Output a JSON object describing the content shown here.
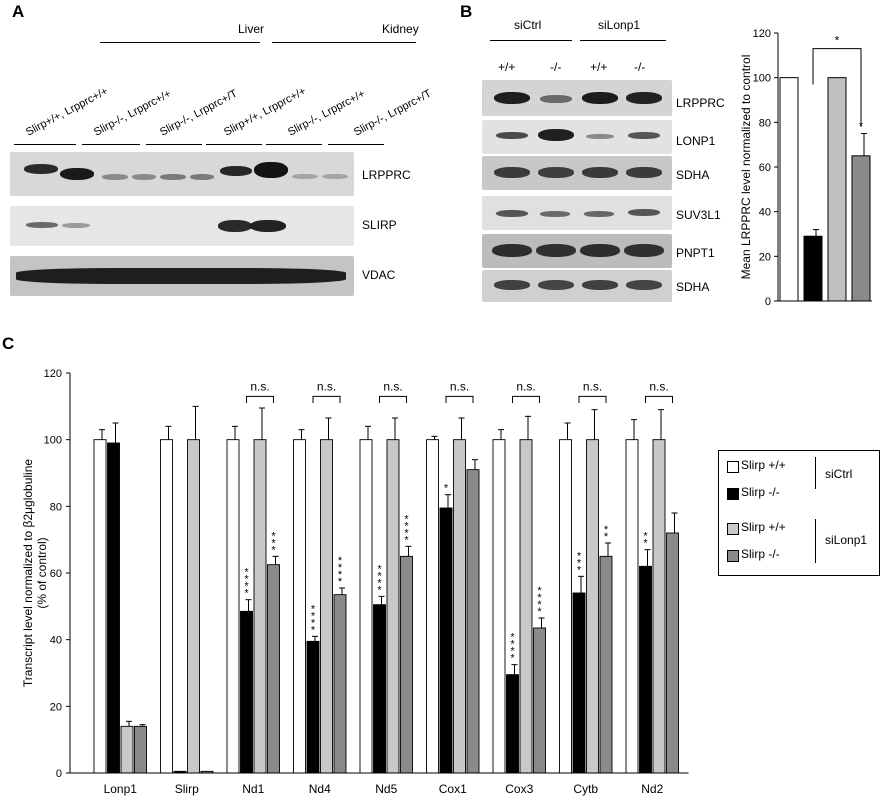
{
  "panel_a": {
    "letter": "A",
    "group_liver": "Liver",
    "group_kidney": "Kidney",
    "lanes": [
      "Slirp+/+, Lrpprc+/+",
      "Slirp-/-, Lrpprc+/+",
      "Slirp-/-, Lrpprc+/T",
      "Slirp+/+, Lrpprc+/+",
      "Slirp-/-, Lrpprc+/+",
      "Slirp-/-, Lrpprc+/T"
    ],
    "blots": [
      "LRPPRC",
      "SLIRP",
      "VDAC"
    ]
  },
  "panel_b": {
    "letter": "B",
    "group_ctrl": "siCtrl",
    "group_lonp": "siLonp1",
    "genotypes": [
      "+/+",
      "-/-",
      "+/+",
      "-/-"
    ],
    "blots": [
      "LRPPRC",
      "LONP1",
      "SDHA",
      "SUV3L1",
      "PNPT1",
      "SDHA"
    ]
  },
  "panel_c": {
    "letter": "C"
  },
  "chart_data": [
    {
      "type": "bar",
      "ylabel": "Mean LRPPRC level normalized to control",
      "ylim": [
        0,
        120
      ],
      "yticks": [
        0,
        20,
        40,
        60,
        80,
        100,
        120
      ],
      "categories": [
        "siCtrl +/+",
        "siCtrl -/-",
        "siLonp1 +/+",
        "siLonp1 -/-"
      ],
      "values": [
        100,
        29,
        100,
        65
      ],
      "errors": [
        0,
        3,
        0,
        10
      ],
      "colors": [
        "#ffffff",
        "#000000",
        "#c0c0c0",
        "#8a8a8a"
      ],
      "stars": [
        "",
        "***",
        "",
        "*"
      ],
      "bracket_label": "*"
    },
    {
      "type": "bar",
      "ylabel_line1": "Transcript level normalized to β2μglobuline",
      "ylabel_line2": "(% of control)",
      "ylim": [
        0,
        120
      ],
      "yticks": [
        0,
        20,
        40,
        60,
        80,
        100,
        120
      ],
      "categories": [
        "Lonp1",
        "Slirp",
        "Nd1",
        "Nd4",
        "Nd5",
        "Cox1",
        "Cox3",
        "Cytb",
        "Nd2"
      ],
      "series": [
        {
          "name": "Slirp +/+",
          "color": "#ffffff",
          "values": [
            100,
            100,
            100,
            100,
            100,
            100,
            100,
            100,
            100
          ],
          "errors": [
            3,
            4,
            4,
            3,
            4,
            1,
            3,
            5,
            6
          ],
          "stars": [
            "",
            "",
            "",
            "",
            "",
            "",
            "",
            "",
            ""
          ]
        },
        {
          "name": "Slirp -/-",
          "color": "#000000",
          "values": [
            99,
            0.5,
            48.5,
            39.5,
            50.5,
            79.5,
            29.5,
            54,
            62
          ],
          "errors": [
            6,
            0,
            3.5,
            1.5,
            2.5,
            4,
            3,
            5,
            5
          ],
          "stars": [
            "",
            "",
            "****",
            "****",
            "****",
            "*",
            "****",
            "***",
            "**"
          ]
        },
        {
          "name": "Slirp +/+",
          "color": "#c8c8c8",
          "values": [
            14,
            100,
            100,
            100,
            100,
            100,
            100,
            100,
            100
          ],
          "errors": [
            1.5,
            10,
            9.5,
            6.5,
            6.5,
            6.5,
            7,
            9,
            9
          ],
          "stars": [
            "",
            "",
            "",
            "",
            "",
            "",
            "",
            "",
            ""
          ]
        },
        {
          "name": "Slirp -/-",
          "color": "#8a8a8a",
          "values": [
            14,
            0.5,
            62.5,
            53.5,
            65,
            91,
            43.5,
            65,
            72
          ],
          "errors": [
            0.5,
            0,
            2.5,
            2,
            3,
            3,
            3,
            4,
            6
          ],
          "stars": [
            "",
            "",
            "***",
            "****",
            "****",
            "",
            "****",
            "**",
            ""
          ]
        }
      ],
      "brackets": {
        "categories": [
          "Nd1",
          "Nd4",
          "Nd5",
          "Cox1",
          "Cox3",
          "Cytb",
          "Nd2"
        ],
        "label": "n.s."
      },
      "legend": {
        "entries": [
          "Slirp +/+",
          "Slirp -/-",
          "Slirp +/+",
          "Slirp -/-"
        ],
        "group1": "siCtrl",
        "group2": "siLonp1"
      }
    }
  ]
}
